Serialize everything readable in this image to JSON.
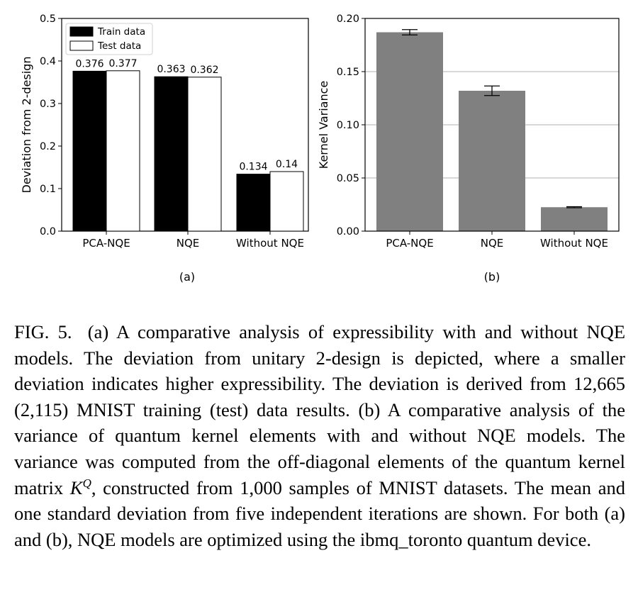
{
  "figure": {
    "panel_a_label": "(a)",
    "panel_b_label": "(b)"
  },
  "caption": {
    "label": "FIG. 5.",
    "part1": "(a) A comparative analysis of expressibility with and without NQE models. The deviation from unitary 2-design is depicted, where a smaller deviation indicates higher expressibility. The deviation is derived from 12,665 (2,115) MNIST training (test) data results. (b) A comparative analysis of the variance of quantum kernel elements with and without NQE models. The variance was computed from the off-diagonal elements of the quantum kernel matrix ",
    "math_symbol": "K",
    "math_sup": "Q",
    "part2": ", constructed from 1,000 samples of MNIST datasets. The mean and one standard deviation from five independent iterations are shown. For both (a) and (b), NQE models are optimized using the ibmq_toronto quantum device."
  },
  "chart_data": [
    {
      "type": "bar",
      "categories": [
        "PCA-NQE",
        "NQE",
        "Without NQE"
      ],
      "series": [
        {
          "name": "Train data",
          "values": [
            0.376,
            0.363,
            0.134
          ],
          "color": "#000000"
        },
        {
          "name": "Test data",
          "values": [
            0.377,
            0.362,
            0.14
          ],
          "color": "#ffffff"
        }
      ],
      "data_labels": [
        [
          "0.376",
          "0.363",
          "0.134"
        ],
        [
          "0.377",
          "0.362",
          "0.14"
        ]
      ],
      "xlabel": "",
      "ylabel": "Deviation from 2-design",
      "ylim": [
        0,
        0.5
      ],
      "yticks": [
        "0.0",
        "0.1",
        "0.2",
        "0.3",
        "0.4",
        "0.5"
      ],
      "grid": false,
      "legend": "top-left"
    },
    {
      "type": "bar",
      "categories": [
        "PCA-NQE",
        "NQE",
        "Without NQE"
      ],
      "values": [
        0.187,
        0.132,
        0.0225
      ],
      "errors": [
        0.0025,
        0.0045,
        0.0005
      ],
      "color": "#808080",
      "xlabel": "",
      "ylabel": "Kernel Variance",
      "ylim": [
        0,
        0.2
      ],
      "yticks": [
        "0.00",
        "0.05",
        "0.10",
        "0.15",
        "0.20"
      ],
      "grid": true
    }
  ]
}
